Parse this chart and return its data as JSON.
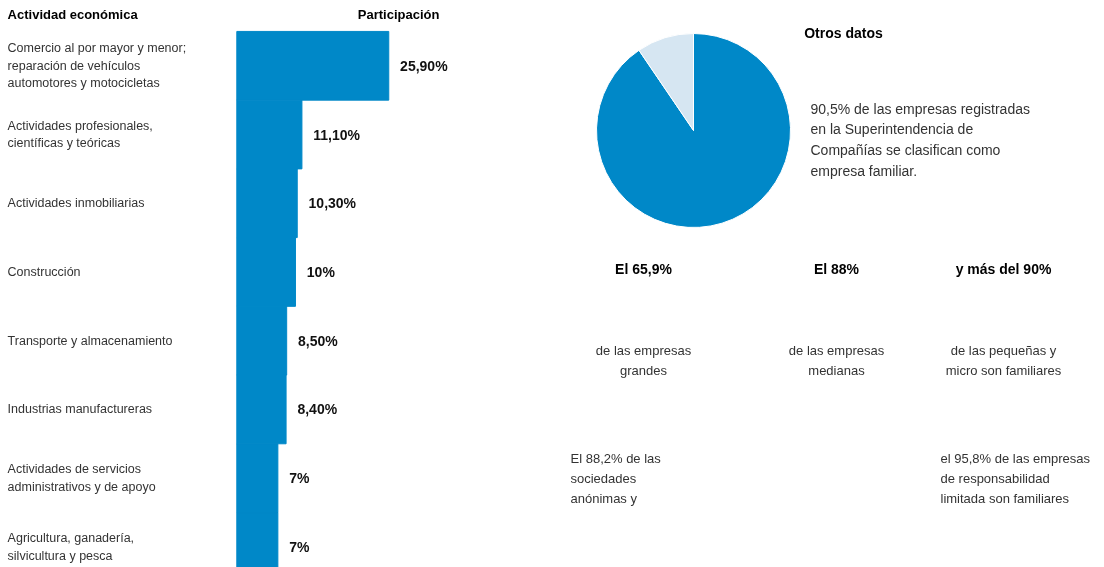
{
  "chart_data": [
    {
      "type": "bar",
      "orientation": "horizontal",
      "ylabel": "Actividad económica",
      "xlabel": "Participación",
      "color": "#0088c8",
      "categories": [
        "Comercio al por mayor y menor; reparación de vehículos automotores y motocicletas",
        "Actividades profesionales, científicas y teóricas",
        "Actividades inmobiliarias",
        "Construcción",
        "Transporte y almacenamiento",
        "Industrias manufactureras",
        "Actividades de servicios administrativos y de apoyo",
        "Agricultura, ganadería, silvicultura y pesca"
      ],
      "values": [
        25.9,
        11.1,
        10.3,
        10,
        8.5,
        8.4,
        7,
        7
      ],
      "value_labels": [
        "25,90%",
        "11,10%",
        "10,30%",
        "10%",
        "8,50%",
        "8,40%",
        "7%",
        "7%"
      ]
    },
    {
      "type": "pie",
      "title": "Otros datos",
      "categories": [
        null,
        null
      ],
      "values": [
        90.5,
        9.5
      ],
      "colors": [
        "#0088c8",
        "#d6e6f2"
      ],
      "annotations": [
        "90,5% de las empresas registradas en la Superintendencia de Compañías se clasifican como empresa familiar."
      ]
    },
    {
      "type": "other",
      "color": "#5ab4e0",
      "categories": [
        "El 65,9%",
        "El 88%",
        "y más del 90%"
      ],
      "annotations": [
        "de las empresas grandes",
        "de las empresas medianas",
        "de las pequeñas y micro son familiares",
        "El 88,2% de las sociedades anónimas y",
        "el 95,8% de las empresas de responsabilidad limitada son familiares"
      ]
    }
  ]
}
